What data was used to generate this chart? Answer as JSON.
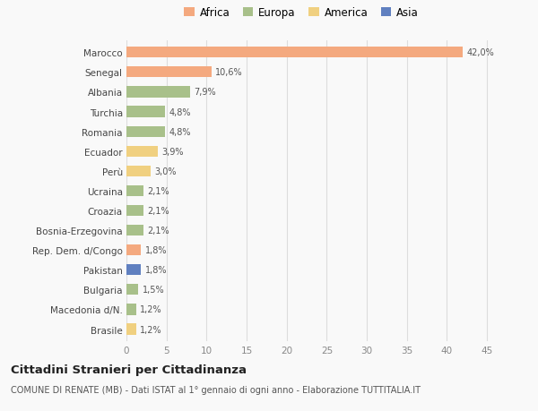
{
  "countries": [
    "Marocco",
    "Senegal",
    "Albania",
    "Turchia",
    "Romania",
    "Ecuador",
    "Perù",
    "Ucraina",
    "Croazia",
    "Bosnia-Erzegovina",
    "Rep. Dem. d/Congo",
    "Pakistan",
    "Bulgaria",
    "Macedonia d/N.",
    "Brasile"
  ],
  "values": [
    42.0,
    10.6,
    7.9,
    4.8,
    4.8,
    3.9,
    3.0,
    2.1,
    2.1,
    2.1,
    1.8,
    1.8,
    1.5,
    1.2,
    1.2
  ],
  "labels": [
    "42,0%",
    "10,6%",
    "7,9%",
    "4,8%",
    "4,8%",
    "3,9%",
    "3,0%",
    "2,1%",
    "2,1%",
    "2,1%",
    "1,8%",
    "1,8%",
    "1,5%",
    "1,2%",
    "1,2%"
  ],
  "continents": [
    "Africa",
    "Africa",
    "Europa",
    "Europa",
    "Europa",
    "America",
    "America",
    "Europa",
    "Europa",
    "Europa",
    "Africa",
    "Asia",
    "Europa",
    "Europa",
    "America"
  ],
  "colors": {
    "Africa": "#F4A97F",
    "Europa": "#A8C08A",
    "America": "#F0D080",
    "Asia": "#6080C0"
  },
  "legend_order": [
    "Africa",
    "Europa",
    "America",
    "Asia"
  ],
  "xlim": [
    0,
    47
  ],
  "xticks": [
    0,
    5,
    10,
    15,
    20,
    25,
    30,
    35,
    40,
    45
  ],
  "title": "Cittadini Stranieri per Cittadinanza",
  "subtitle": "COMUNE DI RENATE (MB) - Dati ISTAT al 1° gennaio di ogni anno - Elaborazione TUTTITALIA.IT",
  "bg_color": "#f9f9f9",
  "grid_color": "#dddddd"
}
